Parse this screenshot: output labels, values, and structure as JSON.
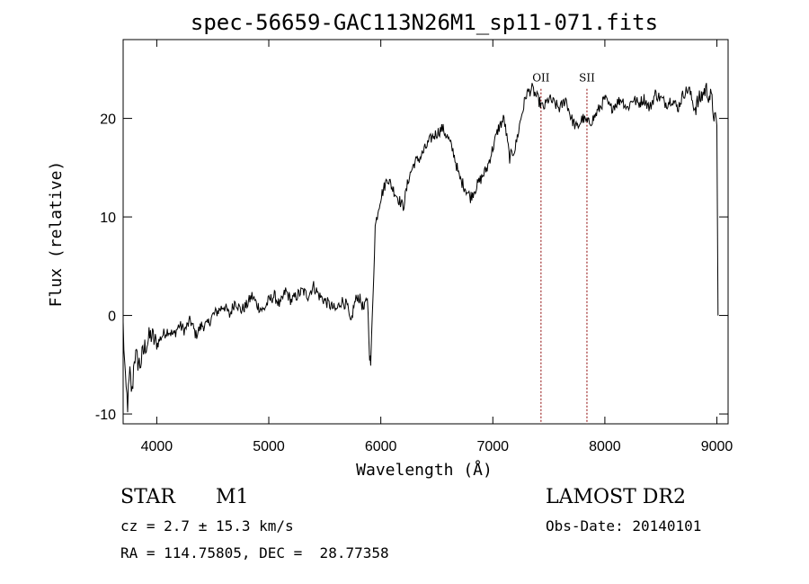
{
  "chart_data": {
    "type": "line",
    "title": "spec-56659-GAC113N26M1_sp11-071.fits",
    "xlabel": "Wavelength (Å)",
    "ylabel": "Flux (relative)",
    "xlim": [
      3700,
      9100
    ],
    "ylim": [
      -11,
      28
    ],
    "xticks": [
      4000,
      5000,
      6000,
      7000,
      8000,
      9000
    ],
    "yticks": [
      -10,
      0,
      10,
      20
    ],
    "grid": false,
    "line_color": "#000000",
    "marker_color": "#8b0000",
    "series": [
      {
        "values_x": [
          3700,
          3720,
          3740,
          3760,
          3780,
          3800,
          3850,
          3900,
          3950,
          4000,
          4050,
          4100,
          4150,
          4200,
          4250,
          4300,
          4350,
          4400,
          4450,
          4500,
          4550,
          4600,
          4650,
          4700,
          4750,
          4800,
          4850,
          4900,
          4950,
          5000,
          5050,
          5100,
          5150,
          5200,
          5250,
          5300,
          5350,
          5400,
          5450,
          5500,
          5550,
          5600,
          5650,
          5700,
          5730,
          5760,
          5790,
          5820,
          5850,
          5880,
          5900,
          5910,
          5930,
          5950,
          5980,
          6000,
          6030,
          6060,
          6100,
          6150,
          6200,
          6250,
          6300,
          6350,
          6400,
          6450,
          6500,
          6550,
          6600,
          6650,
          6700,
          6750,
          6800,
          6850,
          6900,
          6950,
          7000,
          7050,
          7100,
          7150,
          7200,
          7250,
          7300,
          7350,
          7400,
          7450,
          7500,
          7550,
          7600,
          7650,
          7700,
          7750,
          7800,
          7850,
          7900,
          7950,
          8000,
          8050,
          8100,
          8150,
          8200,
          8250,
          8300,
          8350,
          8400,
          8450,
          8500,
          8550,
          8600,
          8650,
          8700,
          8750,
          8800,
          8850,
          8900,
          8950,
          8980,
          9000,
          9010
        ],
        "values_y": [
          -1,
          -7,
          -9,
          -6,
          -8,
          -4,
          -5,
          -3,
          -2,
          -3,
          -2,
          -1.5,
          -2,
          -1,
          -1.5,
          -0.5,
          -2,
          -1,
          -1,
          0,
          0.5,
          1,
          0,
          1.5,
          0.5,
          1,
          2,
          1,
          0.5,
          1.5,
          2,
          1,
          2.5,
          1.5,
          2,
          2.5,
          2,
          3,
          2,
          1.5,
          1,
          0.5,
          1.5,
          1,
          -1,
          1,
          2,
          1.5,
          0.5,
          2,
          -4,
          -5,
          2,
          9,
          11,
          12,
          13,
          14,
          13,
          12,
          11,
          14,
          15.5,
          16,
          17,
          18,
          18.5,
          19,
          18,
          16.5,
          14,
          13,
          12,
          13,
          14,
          15,
          17,
          19,
          20,
          16,
          17,
          20,
          22.5,
          23,
          22,
          21,
          22,
          21.5,
          21,
          22,
          20,
          19,
          20,
          19.5,
          20,
          21,
          22,
          21,
          21.5,
          22,
          21,
          22,
          21.5,
          22,
          21,
          22.5,
          22,
          21.5,
          22,
          21,
          22.5,
          23,
          21,
          22,
          23,
          22,
          20,
          19,
          0
        ]
      }
    ],
    "line_markers": [
      {
        "label": "OII",
        "x": 7430
      },
      {
        "label": "SII",
        "x": 7840
      }
    ]
  },
  "info": {
    "object_class": "STAR",
    "subclass": "M1",
    "survey": "LAMOST DR2",
    "cz": "cz = 2.7 ± 15.3 km/s",
    "obs_date": "Obs-Date: 20140101",
    "coords": "RA = 114.75805, DEC =  28.77358"
  }
}
